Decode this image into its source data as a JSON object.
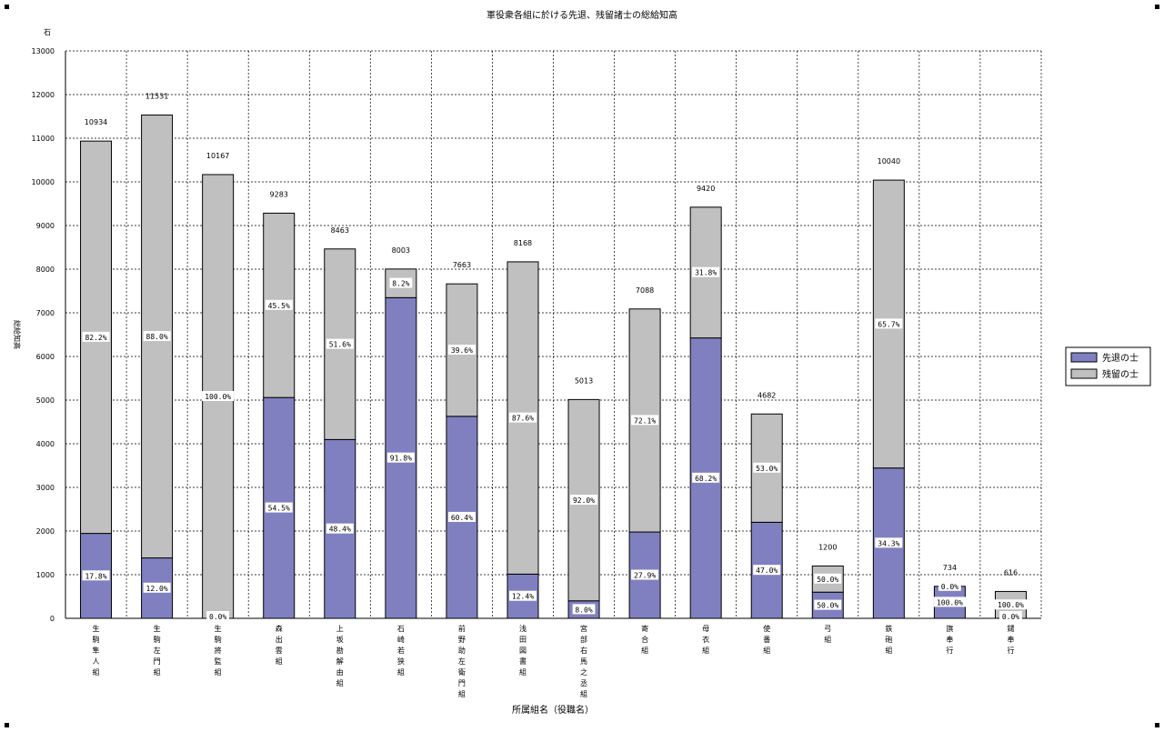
{
  "chart_data": {
    "type": "bar",
    "stacked": true,
    "title": "軍役衆各組に於ける先退、残留諸士の総給知高",
    "xlabel": "所属組名（役職名）",
    "ylabel": "総給知高",
    "yunit": "石",
    "ylim": [
      0,
      13000
    ],
    "yticks": [
      0,
      1000,
      2000,
      3000,
      4000,
      5000,
      6000,
      7000,
      8000,
      9000,
      10000,
      11000,
      12000,
      13000
    ],
    "grid": true,
    "legend_position": "right",
    "categories": [
      "生駒隼人組",
      "生駒左門組",
      "生駒將監組",
      "森出雲組",
      "上坂勘解由組",
      "石崎若狭組",
      "前野助左衛門組",
      "浅田図書組",
      "宮部右馬之丞組",
      "寄合組",
      "母衣組",
      "使番組",
      "弓組",
      "鉄砲組",
      "旗奉行",
      "鑓奉行"
    ],
    "totals": [
      10934,
      11531,
      10167,
      9283,
      8463,
      8003,
      7663,
      8168,
      5013,
      7088,
      9420,
      4682,
      1200,
      10040,
      734,
      616
    ],
    "series": [
      {
        "name": "先退の士",
        "color": "#8080c0",
        "values": [
          1946,
          1384,
          0,
          5059,
          4096,
          7347,
          4628,
          1013,
          401,
          1978,
          6424,
          2201,
          600,
          3444,
          734,
          0
        ],
        "labels": [
          "17.8%",
          "12.0%",
          "0.0%",
          "54.5%",
          "48.4%",
          "91.8%",
          "60.4%",
          "12.4%",
          "8.0%",
          "27.9%",
          "68.2%",
          "47.0%",
          "50.0%",
          "34.3%",
          "100.0%",
          "0.0%"
        ]
      },
      {
        "name": "残留の士",
        "color": "#c0c0c0",
        "values": [
          8988,
          10147,
          10167,
          4224,
          4367,
          656,
          3035,
          7155,
          4612,
          5110,
          2996,
          2481,
          600,
          6596,
          0,
          616
        ],
        "labels": [
          "82.2%",
          "88.0%",
          "100.0%",
          "45.5%",
          "51.6%",
          "8.2%",
          "39.6%",
          "87.6%",
          "92.0%",
          "72.1%",
          "31.8%",
          "53.0%",
          "50.0%",
          "65.7%",
          "0.0%",
          "100.0%"
        ]
      }
    ]
  }
}
